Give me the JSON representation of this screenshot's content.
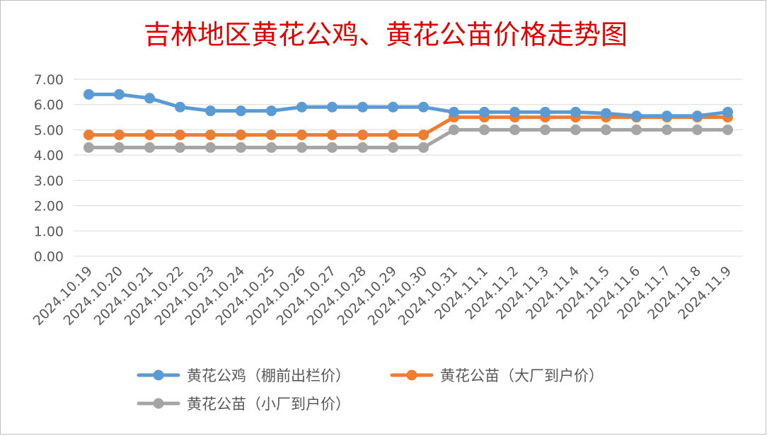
{
  "chart_data": {
    "type": "line",
    "title": "吉林地区黄花公鸡、黄花公苗价格走势图",
    "xlabel": "",
    "ylabel": "",
    "ylim": [
      0,
      7
    ],
    "yticks": [
      "0.00",
      "1.00",
      "2.00",
      "3.00",
      "4.00",
      "5.00",
      "6.00",
      "7.00"
    ],
    "grid": true,
    "legend_position": "bottom",
    "categories": [
      "2024.10.19",
      "2024.10.20",
      "2024.10.21",
      "2024.10.22",
      "2024.10.23",
      "2024.10.24",
      "2024.10.25",
      "2024.10.26",
      "2024.10.27",
      "2024.10.28",
      "2024.10.29",
      "2024.10.30",
      "2024.10.31",
      "2024.11.1",
      "2024.11.2",
      "2024.11.3",
      "2024.11.4",
      "2024.11.5",
      "2024.11.6",
      "2024.11.7",
      "2024.11.8",
      "2024.11.9"
    ],
    "series": [
      {
        "name": "黄花公鸡（棚前出栏价）",
        "color": "#5b9bd5",
        "values": [
          6.4,
          6.4,
          6.25,
          5.9,
          5.75,
          5.75,
          5.75,
          5.9,
          5.9,
          5.9,
          5.9,
          5.9,
          5.7,
          5.7,
          5.7,
          5.7,
          5.7,
          5.65,
          5.55,
          5.55,
          5.55,
          5.7
        ]
      },
      {
        "name": "黄花公苗（大厂到户价）",
        "color": "#ed7d31",
        "values": [
          4.8,
          4.8,
          4.8,
          4.8,
          4.8,
          4.8,
          4.8,
          4.8,
          4.8,
          4.8,
          4.8,
          4.8,
          5.5,
          5.5,
          5.5,
          5.5,
          5.5,
          5.5,
          5.5,
          5.5,
          5.5,
          5.5
        ]
      },
      {
        "name": "黄花公苗（小厂到户价）",
        "color": "#a5a5a5",
        "values": [
          4.3,
          4.3,
          4.3,
          4.3,
          4.3,
          4.3,
          4.3,
          4.3,
          4.3,
          4.3,
          4.3,
          4.3,
          5.0,
          5.0,
          5.0,
          5.0,
          5.0,
          5.0,
          5.0,
          5.0,
          5.0,
          5.0
        ]
      }
    ]
  }
}
